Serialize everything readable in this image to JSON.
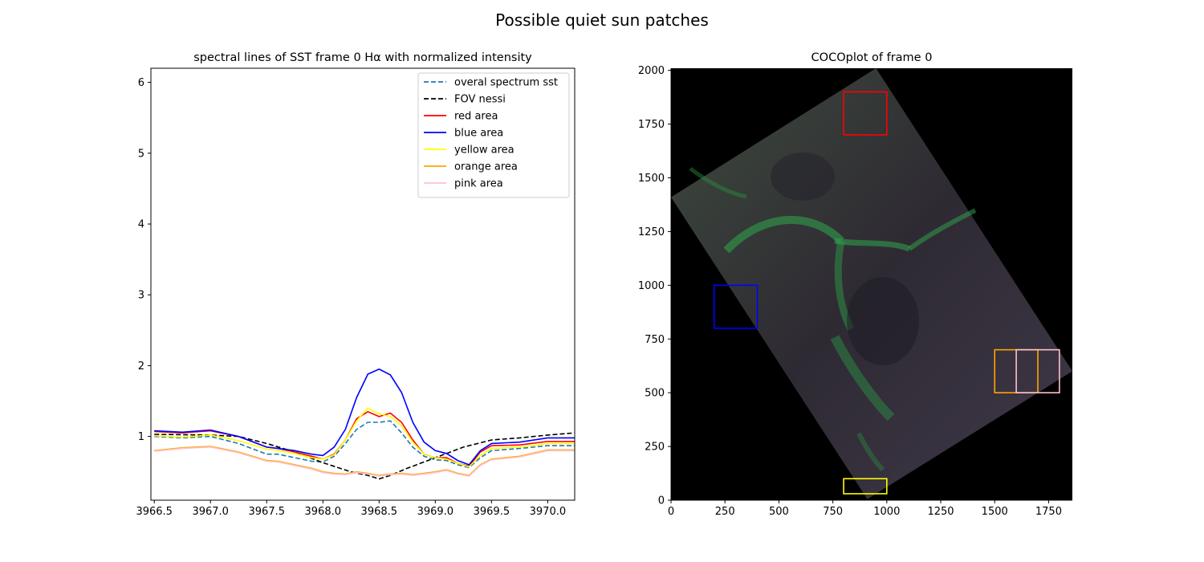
{
  "figure": {
    "suptitle": "Possible quiet sun patches"
  },
  "chart_data": [
    {
      "type": "line",
      "title": "spectral lines of SST frame 0 Hα with normalized intensity",
      "xlabel": "",
      "ylabel": "",
      "xlim": [
        3966.47,
        3970.24
      ],
      "ylim": [
        0.1,
        6.2
      ],
      "x_ticks": [
        3966.5,
        3967.0,
        3967.5,
        3968.0,
        3968.5,
        3969.0,
        3969.5,
        3970.0
      ],
      "x_tick_labels": [
        "3966.5",
        "3967.0",
        "3967.5",
        "3968.0",
        "3968.5",
        "3969.0",
        "3969.5",
        "3970.0"
      ],
      "y_ticks": [
        1,
        2,
        3,
        4,
        5,
        6
      ],
      "y_tick_labels": [
        "1",
        "2",
        "3",
        "4",
        "5",
        "6"
      ],
      "grid": false,
      "legend_position": "top-right",
      "series": [
        {
          "name": "overal spectrum sst",
          "color": "#1f77b4",
          "style": "dashed",
          "x": [
            3966.5,
            3966.75,
            3967.0,
            3967.25,
            3967.5,
            3967.6,
            3967.75,
            3967.9,
            3968.0,
            3968.1,
            3968.2,
            3968.3,
            3968.4,
            3968.5,
            3968.6,
            3968.7,
            3968.8,
            3968.9,
            3969.0,
            3969.1,
            3969.2,
            3969.3,
            3969.4,
            3969.5,
            3969.75,
            3970.0,
            3970.24
          ],
          "y": [
            1.0,
            0.98,
            1.0,
            0.9,
            0.75,
            0.75,
            0.7,
            0.65,
            0.64,
            0.72,
            0.9,
            1.1,
            1.2,
            1.2,
            1.22,
            1.05,
            0.85,
            0.72,
            0.67,
            0.66,
            0.6,
            0.56,
            0.7,
            0.8,
            0.83,
            0.87,
            0.87
          ]
        },
        {
          "name": "FOV nessi",
          "color": "#000000",
          "style": "dashed",
          "x": [
            3966.5,
            3967.0,
            3967.25,
            3967.5,
            3967.75,
            3968.0,
            3968.25,
            3968.4,
            3968.5,
            3968.6,
            3968.75,
            3969.0,
            3969.25,
            3969.5,
            3969.75,
            3970.0,
            3970.24
          ],
          "y": [
            1.03,
            1.02,
            1.0,
            0.9,
            0.78,
            0.63,
            0.5,
            0.45,
            0.4,
            0.45,
            0.55,
            0.7,
            0.85,
            0.95,
            0.98,
            1.02,
            1.05
          ]
        },
        {
          "name": "red area",
          "color": "#ff0000",
          "style": "solid",
          "x": [
            3966.5,
            3966.75,
            3967.0,
            3967.25,
            3967.5,
            3967.6,
            3967.75,
            3967.9,
            3968.0,
            3968.1,
            3968.2,
            3968.3,
            3968.4,
            3968.5,
            3968.6,
            3968.7,
            3968.8,
            3968.9,
            3969.0,
            3969.1,
            3969.2,
            3969.3,
            3969.4,
            3969.5,
            3969.75,
            3970.0,
            3970.24
          ],
          "y": [
            1.07,
            1.05,
            1.08,
            1.0,
            0.85,
            0.83,
            0.78,
            0.72,
            0.68,
            0.75,
            0.95,
            1.25,
            1.35,
            1.28,
            1.33,
            1.2,
            0.95,
            0.75,
            0.7,
            0.7,
            0.62,
            0.58,
            0.78,
            0.87,
            0.88,
            0.93,
            0.93
          ]
        },
        {
          "name": "blue area",
          "color": "#0000ff",
          "style": "solid",
          "x": [
            3966.5,
            3966.75,
            3967.0,
            3967.25,
            3967.5,
            3967.6,
            3967.75,
            3967.9,
            3968.0,
            3968.1,
            3968.2,
            3968.3,
            3968.4,
            3968.5,
            3968.6,
            3968.7,
            3968.8,
            3968.9,
            3969.0,
            3969.1,
            3969.2,
            3969.3,
            3969.4,
            3969.5,
            3969.75,
            3970.0,
            3970.24
          ],
          "y": [
            1.08,
            1.06,
            1.09,
            1.0,
            0.85,
            0.83,
            0.8,
            0.75,
            0.73,
            0.85,
            1.1,
            1.55,
            1.88,
            1.95,
            1.87,
            1.62,
            1.2,
            0.92,
            0.8,
            0.76,
            0.66,
            0.6,
            0.8,
            0.9,
            0.92,
            0.98,
            0.98
          ]
        },
        {
          "name": "yellow area",
          "color": "#ffff00",
          "style": "solid",
          "x": [
            3966.5,
            3966.75,
            3967.0,
            3967.25,
            3967.5,
            3967.6,
            3967.75,
            3967.9,
            3968.0,
            3968.1,
            3968.2,
            3968.3,
            3968.4,
            3968.5,
            3968.6,
            3968.7,
            3968.8,
            3968.9,
            3969.0,
            3969.1,
            3969.2,
            3969.3,
            3969.4,
            3969.5,
            3969.75,
            3970.0,
            3970.24
          ],
          "y": [
            1.01,
            0.99,
            1.02,
            0.94,
            0.82,
            0.8,
            0.76,
            0.7,
            0.68,
            0.74,
            0.95,
            1.22,
            1.4,
            1.32,
            1.28,
            1.15,
            0.92,
            0.75,
            0.7,
            0.68,
            0.62,
            0.57,
            0.73,
            0.83,
            0.85,
            0.9,
            0.9
          ]
        },
        {
          "name": "orange area",
          "color": "#ffa500",
          "style": "solid",
          "x": [
            3966.5,
            3966.75,
            3967.0,
            3967.25,
            3967.5,
            3967.6,
            3967.75,
            3967.9,
            3968.0,
            3968.1,
            3968.2,
            3968.3,
            3968.4,
            3968.5,
            3968.6,
            3968.7,
            3968.8,
            3968.9,
            3969.0,
            3969.1,
            3969.2,
            3969.3,
            3969.4,
            3969.5,
            3969.75,
            3970.0,
            3970.24
          ],
          "y": [
            0.8,
            0.84,
            0.86,
            0.78,
            0.66,
            0.65,
            0.6,
            0.55,
            0.5,
            0.48,
            0.47,
            0.5,
            0.48,
            0.45,
            0.47,
            0.48,
            0.46,
            0.48,
            0.5,
            0.53,
            0.48,
            0.45,
            0.6,
            0.68,
            0.72,
            0.81,
            0.81
          ]
        },
        {
          "name": "pink area",
          "color": "#ffc0cb",
          "style": "solid",
          "x": [
            3966.5,
            3966.75,
            3967.0,
            3967.25,
            3967.5,
            3967.6,
            3967.75,
            3967.9,
            3968.0,
            3968.1,
            3968.2,
            3968.3,
            3968.4,
            3968.5,
            3968.6,
            3968.7,
            3968.8,
            3968.9,
            3969.0,
            3969.1,
            3969.2,
            3969.3,
            3969.4,
            3969.5,
            3969.75,
            3970.0,
            3970.24
          ],
          "y": [
            0.79,
            0.83,
            0.85,
            0.77,
            0.65,
            0.64,
            0.59,
            0.54,
            0.49,
            0.47,
            0.46,
            0.49,
            0.47,
            0.44,
            0.46,
            0.47,
            0.45,
            0.47,
            0.49,
            0.52,
            0.47,
            0.44,
            0.59,
            0.67,
            0.71,
            0.8,
            0.8
          ]
        }
      ]
    },
    {
      "type": "image",
      "title": "COCOplot of frame 0",
      "xlabel": "",
      "ylabel": "",
      "xlim": [
        0,
        1860
      ],
      "ylim": [
        0,
        2010
      ],
      "x_ticks": [
        0,
        250,
        500,
        750,
        1000,
        1250,
        1500,
        1750
      ],
      "x_tick_labels": [
        "0",
        "250",
        "500",
        "750",
        "1000",
        "1250",
        "1500",
        "1750"
      ],
      "y_ticks": [
        0,
        250,
        500,
        750,
        1000,
        1250,
        1500,
        1750,
        2000
      ],
      "y_tick_labels": [
        "0",
        "250",
        "500",
        "750",
        "1000",
        "1250",
        "1500",
        "1750",
        "2000"
      ],
      "background_color": "#000000",
      "field_of_view": [
        [
          0,
          1410
        ],
        [
          950,
          2010
        ],
        [
          1860,
          600
        ],
        [
          910,
          5
        ]
      ],
      "regions": [
        {
          "name": "red area",
          "color": "#ff0000",
          "x": [
            800,
            1000
          ],
          "y": [
            1700,
            1900
          ]
        },
        {
          "name": "blue area",
          "color": "#0000ff",
          "x": [
            200,
            400
          ],
          "y": [
            800,
            1000
          ]
        },
        {
          "name": "yellow area",
          "color": "#ffff00",
          "x": [
            800,
            1000
          ],
          "y": [
            30,
            100
          ]
        },
        {
          "name": "orange area",
          "color": "#ffa500",
          "x": [
            1500,
            1700
          ],
          "y": [
            500,
            700
          ]
        },
        {
          "name": "pink area",
          "color": "#ffc0cb",
          "x": [
            1600,
            1800
          ],
          "y": [
            500,
            700
          ]
        }
      ]
    }
  ]
}
